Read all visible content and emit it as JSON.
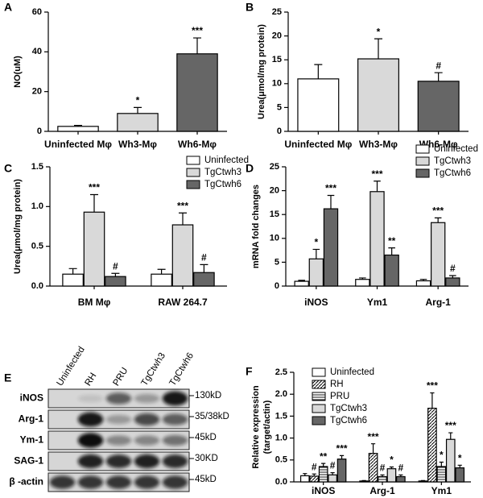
{
  "chart_data": [
    {
      "panel": "A",
      "type": "bar",
      "ylabel": "NO(uM)",
      "categories": [
        "Uninfected Mφ",
        "Wh3-Mφ",
        "Wh6-Mφ"
      ],
      "values": [
        2.5,
        9,
        39
      ],
      "errors": [
        0.5,
        3,
        8
      ],
      "annotations": [
        null,
        "*",
        "***"
      ],
      "colors": [
        "#ffffff",
        "#d9d9d9",
        "#666666"
      ],
      "ylim": [
        0,
        60
      ],
      "yticks": [
        0,
        20,
        40,
        60
      ]
    },
    {
      "panel": "B",
      "type": "bar",
      "ylabel": "Urea(μmol/mg protein)",
      "categories": [
        "Uninfected Mφ",
        "Wh3-Mφ",
        "Wh6-Mφ"
      ],
      "values": [
        11,
        15.2,
        10.5
      ],
      "errors": [
        3,
        4.2,
        1.8
      ],
      "annotations": [
        null,
        "*",
        "#"
      ],
      "colors": [
        "#ffffff",
        "#d9d9d9",
        "#666666"
      ],
      "ylim": [
        0,
        25
      ],
      "yticks": [
        0,
        5,
        10,
        15,
        20,
        25
      ]
    },
    {
      "panel": "C",
      "type": "bar",
      "ylabel": "Urea(μmol/mg protein)",
      "categories": [
        "BM Mφ",
        "RAW 264.7"
      ],
      "series": [
        {
          "name": "Uninfected",
          "color": "#ffffff",
          "values": [
            0.15,
            0.15
          ],
          "errors": [
            0.07,
            0.06
          ],
          "annotations": [
            null,
            null
          ]
        },
        {
          "name": "TgCtwh3",
          "color": "#d9d9d9",
          "values": [
            0.93,
            0.77
          ],
          "errors": [
            0.22,
            0.15
          ],
          "annotations": [
            "***",
            "***"
          ]
        },
        {
          "name": "TgCtwh6",
          "color": "#666666",
          "values": [
            0.12,
            0.17
          ],
          "errors": [
            0.04,
            0.1
          ],
          "annotations": [
            "#",
            "#"
          ]
        }
      ],
      "ylim": [
        0,
        1.5
      ],
      "yticks": [
        {
          "value": 0,
          "label": "0.0"
        },
        0.5,
        {
          "value": 1,
          "label": "1.0"
        },
        1.5
      ]
    },
    {
      "panel": "D",
      "type": "bar",
      "ylabel": "mRNA fold changes",
      "categories": [
        "iNOS",
        "Ym1",
        "Arg-1"
      ],
      "series": [
        {
          "name": "Uninfected",
          "color": "#ffffff",
          "values": [
            1,
            1.4,
            1.1
          ],
          "errors": [
            0.2,
            0.3,
            0.3
          ],
          "annotations": [
            null,
            null,
            null
          ]
        },
        {
          "name": "TgCtwh3",
          "color": "#d9d9d9",
          "values": [
            5.7,
            19.8,
            13.3
          ],
          "errors": [
            2,
            2.2,
            1
          ],
          "annotations": [
            "*",
            "***",
            "***"
          ]
        },
        {
          "name": "TgCtwh6",
          "color": "#666666",
          "values": [
            16.2,
            6.5,
            1.7
          ],
          "errors": [
            2.8,
            1.5,
            0.5
          ],
          "annotations": [
            "***",
            "**",
            "#"
          ]
        }
      ],
      "ylim": [
        0,
        25
      ],
      "yticks": [
        0,
        5,
        10,
        15,
        20,
        25
      ]
    },
    {
      "panel": "F",
      "type": "bar",
      "ylabel": [
        "Relative expression",
        "(target/actin)"
      ],
      "categories": [
        "iNOS",
        "Arg-1",
        "Ym1"
      ],
      "series": [
        {
          "name": "Uninfected",
          "color": "#ffffff",
          "values": [
            0.14,
            0.02,
            0.02
          ],
          "errors": [
            0.05,
            0.01,
            0.01
          ],
          "annotations": [
            null,
            null,
            null
          ]
        },
        {
          "name": "RH",
          "color": "#ffffff",
          "pattern": "diagonal",
          "values": [
            0.13,
            0.65,
            1.68
          ],
          "errors": [
            0.05,
            0.22,
            0.35
          ],
          "annotations": [
            "#",
            "***",
            "***"
          ]
        },
        {
          "name": "PRU",
          "color": "#ffffff",
          "pattern": "horizontal",
          "values": [
            0.35,
            0.12,
            0.35
          ],
          "errors": [
            0.07,
            0.04,
            0.1
          ],
          "annotations": [
            "**",
            "#",
            "*"
          ]
        },
        {
          "name": "TgCtwh3",
          "color": "#d9d9d9",
          "values": [
            0.16,
            0.3,
            0.97
          ],
          "errors": [
            0.05,
            0.04,
            0.15
          ],
          "annotations": [
            "#",
            "*",
            "***"
          ]
        },
        {
          "name": "TgCtwh6",
          "color": "#666666",
          "values": [
            0.52,
            0.12,
            0.32
          ],
          "errors": [
            0.08,
            0.04,
            0.06
          ],
          "annotations": [
            "***",
            "#",
            "*"
          ]
        }
      ],
      "ylim": [
        0,
        2.5
      ],
      "yticks": [
        {
          "value": 0,
          "label": "0.0"
        },
        0.5,
        {
          "value": 1,
          "label": "1.0"
        },
        1.5,
        {
          "value": 2,
          "label": "2.0"
        },
        2.5
      ]
    }
  ],
  "blot": {
    "panel": "E",
    "lanes": [
      "Uninfected",
      "RH",
      "PRU",
      "TgCtwh3",
      "TgCtwh6"
    ],
    "rows": [
      {
        "label": "iNOS",
        "size": "130kD"
      },
      {
        "label": "Arg-1",
        "size": "35/38kD"
      },
      {
        "label": "Ym-1",
        "size": "45kD"
      },
      {
        "label": "SAG-1",
        "size": "30KD"
      },
      {
        "label": "β -actin",
        "size": "45kD"
      }
    ]
  }
}
